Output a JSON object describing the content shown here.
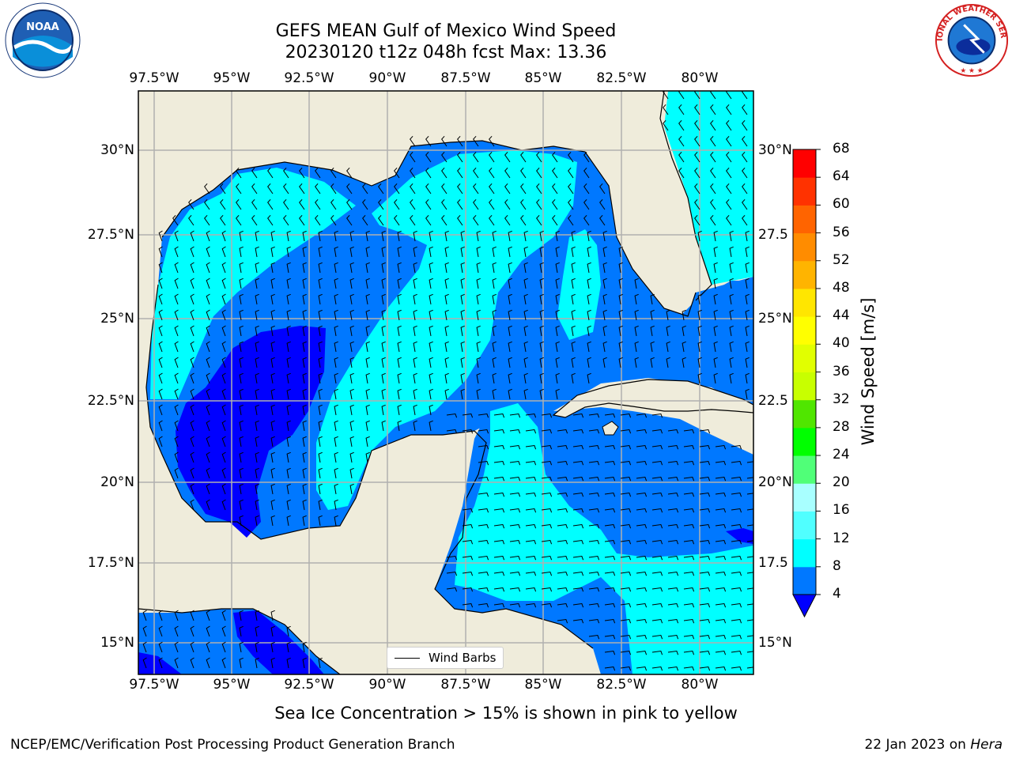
{
  "header": {
    "title_line1": "GEFS MEAN Gulf of Mexico Wind Speed",
    "title_line2": "20230120 t12z 048h fcst   Max: 13.36"
  },
  "map": {
    "lon_labels": [
      "97.5°W",
      "95°W",
      "92.5°W",
      "90°W",
      "87.5°W",
      "85°W",
      "82.5°W",
      "80°W"
    ],
    "lat_labels_left": [
      "30°N",
      "27.5°N",
      "25°N",
      "22.5°N",
      "20°N",
      "17.5°N",
      "15°N"
    ],
    "lat_labels_right": [
      "30°N",
      "27.5",
      "25°N",
      "22.5",
      "20°N",
      "17.5",
      "15°N"
    ],
    "legend_label": "Wind Barbs",
    "colors": {
      "land": "#efecdb",
      "grid": "#b0b0b0",
      "coast": "#000000"
    }
  },
  "colorbar": {
    "label": "Wind Speed [m/s]",
    "ticks": [
      "68",
      "64",
      "60",
      "56",
      "52",
      "48",
      "44",
      "40",
      "36",
      "32",
      "28",
      "24",
      "20",
      "16",
      "12",
      "8",
      "4"
    ],
    "colors": [
      "#0000ff",
      "#0078ff",
      "#00ffff",
      "#50ffff",
      "#a8ffff",
      "#50ff78",
      "#00ff00",
      "#50e600",
      "#c8ff00",
      "#e1ff00",
      "#ffff00",
      "#ffe600",
      "#ffb400",
      "#ff8c00",
      "#ff6400",
      "#ff3200",
      "#ff0000"
    ]
  },
  "footer": {
    "note": "Sea Ice Concentration > 15% is shown in pink to yellow",
    "left": "NCEP/EMC/Verification Post Processing Product Generation Branch",
    "right_date": "22 Jan 2023 on",
    "right_machine": "Hera"
  },
  "logos": {
    "noaa_text": "NOAA",
    "nws_text": "NATIONAL WEATHER SERVICE"
  }
}
